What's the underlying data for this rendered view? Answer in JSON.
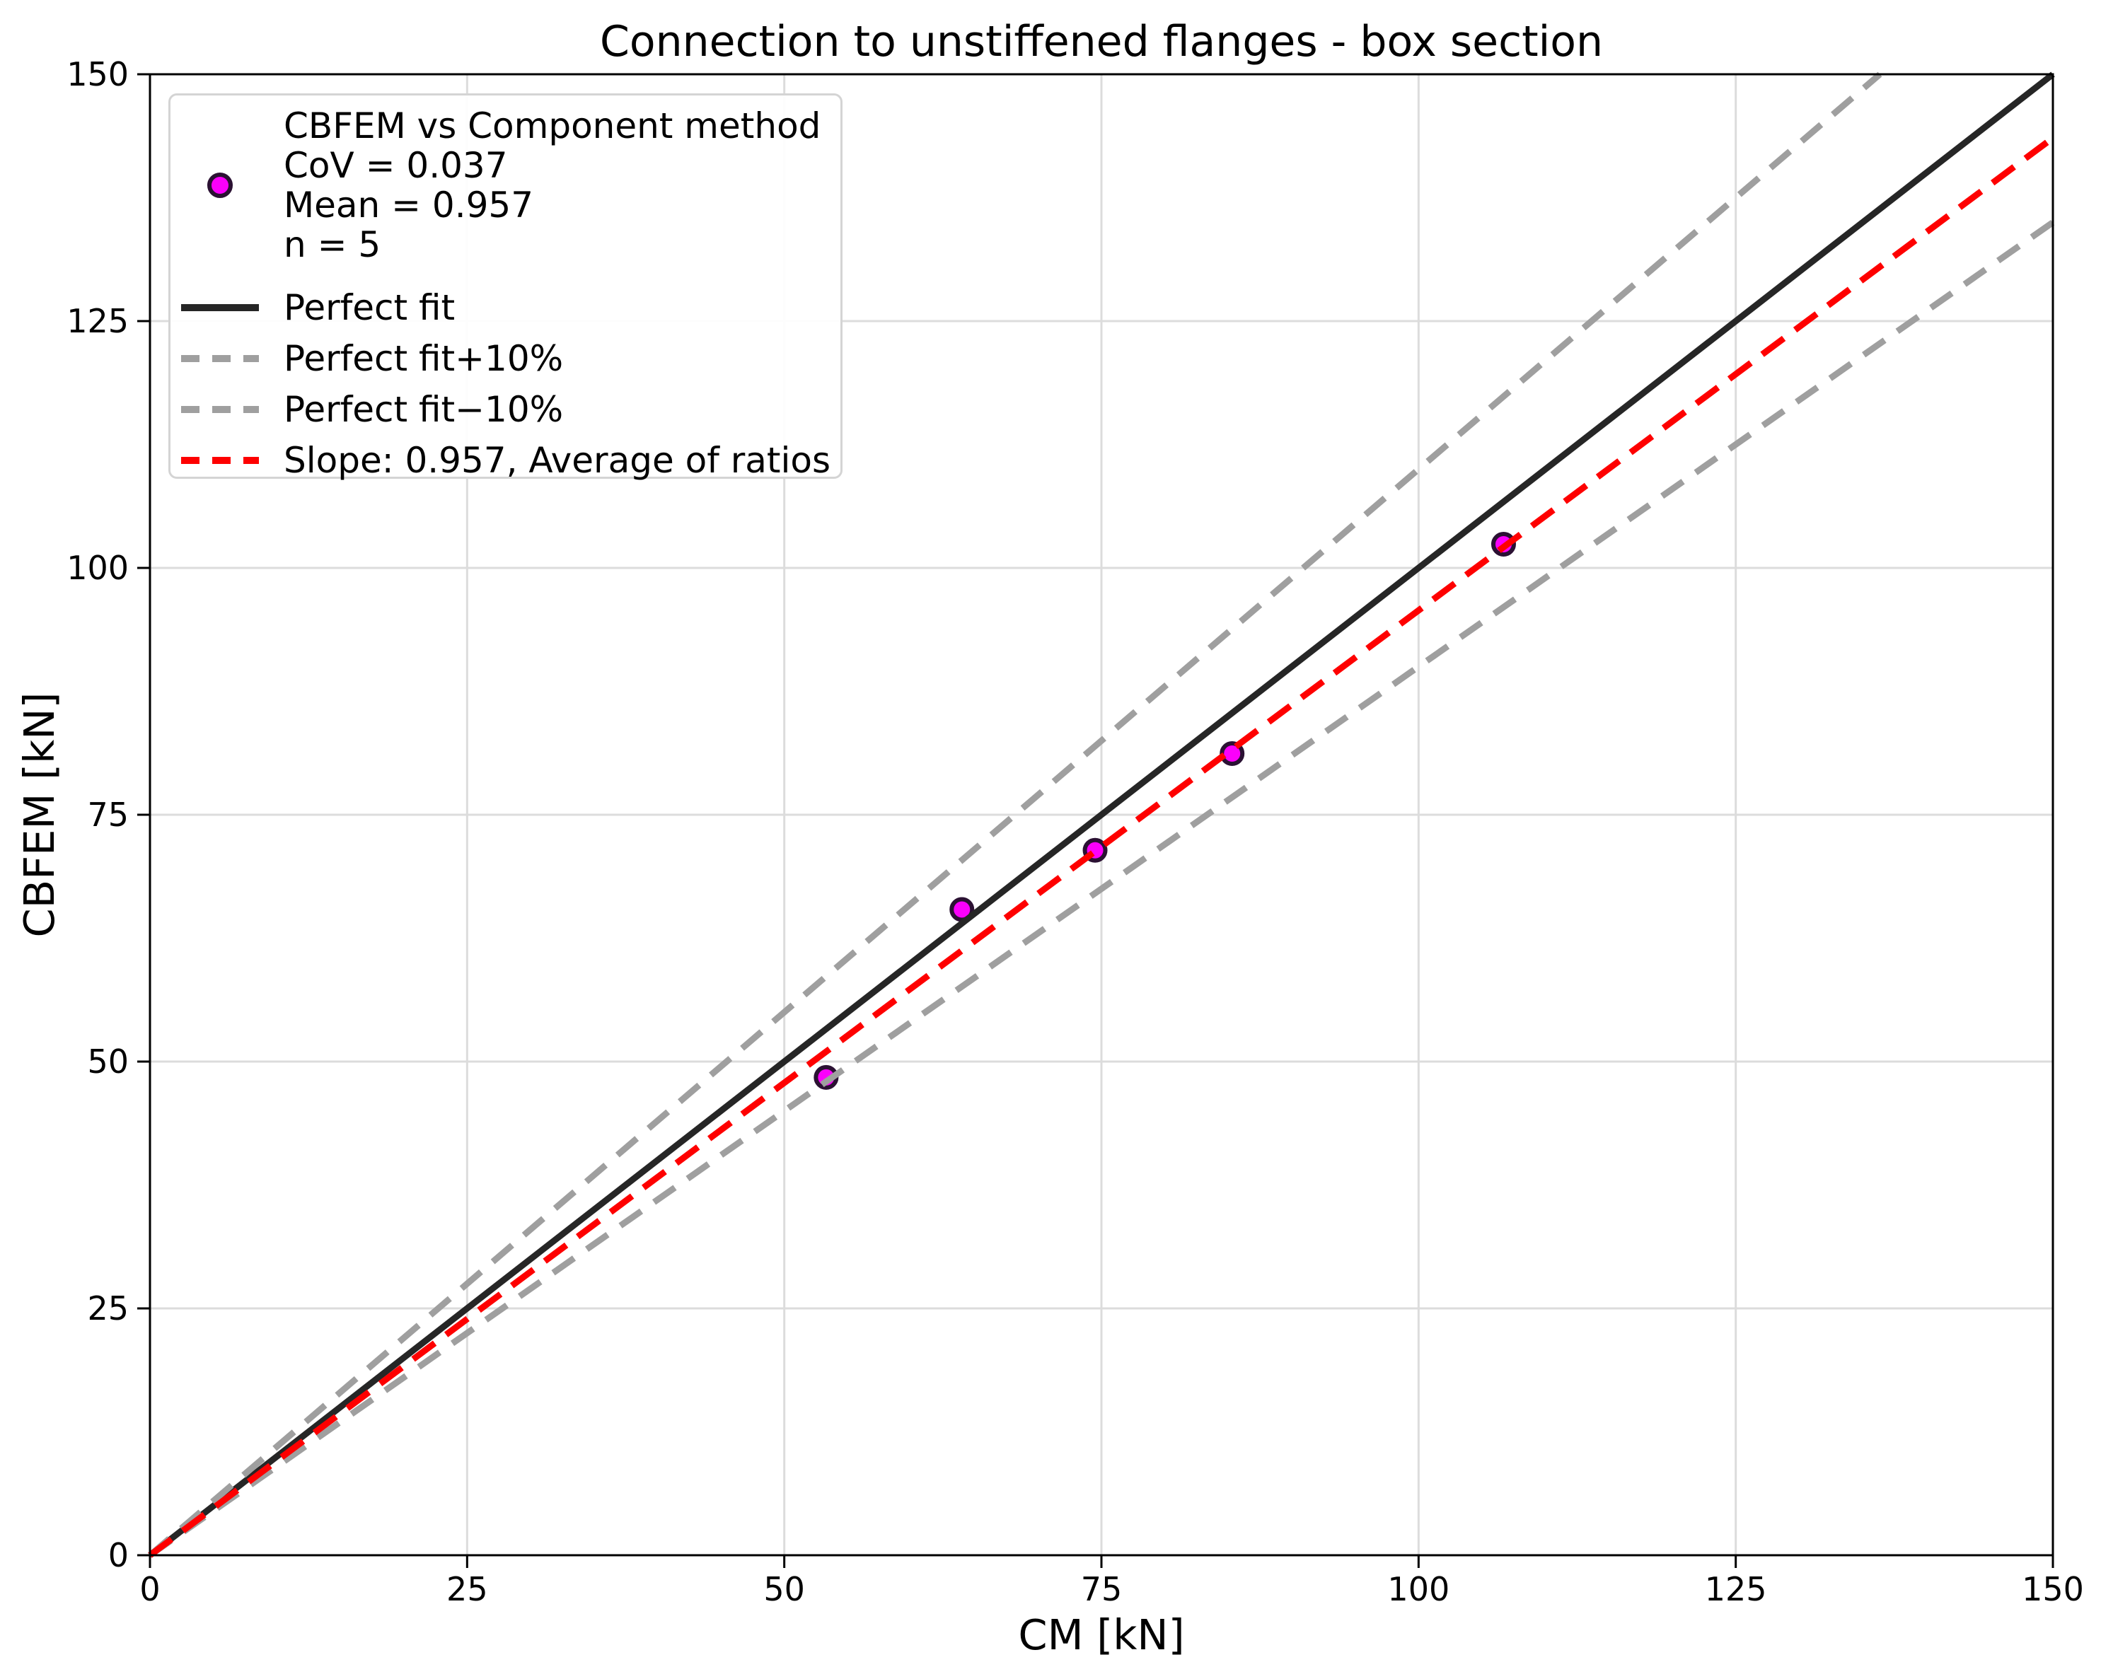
{
  "title": "Connection to unstiffened flanges - box section",
  "legend": {
    "series_label": "CBFEM vs Component method",
    "cov": "CoV = 0.037",
    "mean": "Mean = 0.957",
    "n": "n = 5",
    "perfect_fit": "Perfect fit",
    "perfect_fit_plus": "Perfect fit+10%",
    "perfect_fit_minus": "Perfect fit−10%",
    "slope_line": "Slope: 0.957, Average of ratios"
  },
  "chart_data": {
    "type": "scatter",
    "title": "Connection to unstiffened flanges - box section",
    "xlabel": "CM [kN]",
    "ylabel": "CBFEM [kN]",
    "xlim": [
      0,
      150
    ],
    "ylim": [
      0,
      150
    ],
    "x_ticks": [
      0,
      25,
      50,
      75,
      100,
      125,
      150
    ],
    "y_ticks": [
      0,
      25,
      50,
      75,
      100,
      125,
      150
    ],
    "grid": true,
    "grid_color": "#dcdcdc",
    "spine_color": "#000000",
    "legend_position": "upper left",
    "series": [
      {
        "name": "CBFEM vs Component method",
        "type": "scatter",
        "x": [
          53.3,
          64.0,
          74.5,
          85.3,
          106.7
        ],
        "y": [
          48.4,
          65.4,
          71.4,
          81.2,
          102.4
        ],
        "marker_fill": "#fb00fb",
        "marker_edge": "#2b1133",
        "stats": {
          "CoV": 0.037,
          "Mean": 0.957,
          "n": 5
        }
      },
      {
        "name": "Perfect fit",
        "type": "line",
        "slope": 1.0,
        "color": "#262626",
        "dash": null
      },
      {
        "name": "Perfect fit+10%",
        "type": "line",
        "slope": 1.1,
        "color": "#9f9f9f",
        "dash": [
          36,
          22
        ]
      },
      {
        "name": "Perfect fit−10%",
        "type": "line",
        "slope": 0.9,
        "color": "#9f9f9f",
        "dash": [
          36,
          22
        ]
      },
      {
        "name": "Slope: 0.957, Average of ratios",
        "type": "line",
        "slope": 0.957,
        "color": "#fe0000",
        "dash": [
          38,
          20
        ]
      }
    ]
  }
}
